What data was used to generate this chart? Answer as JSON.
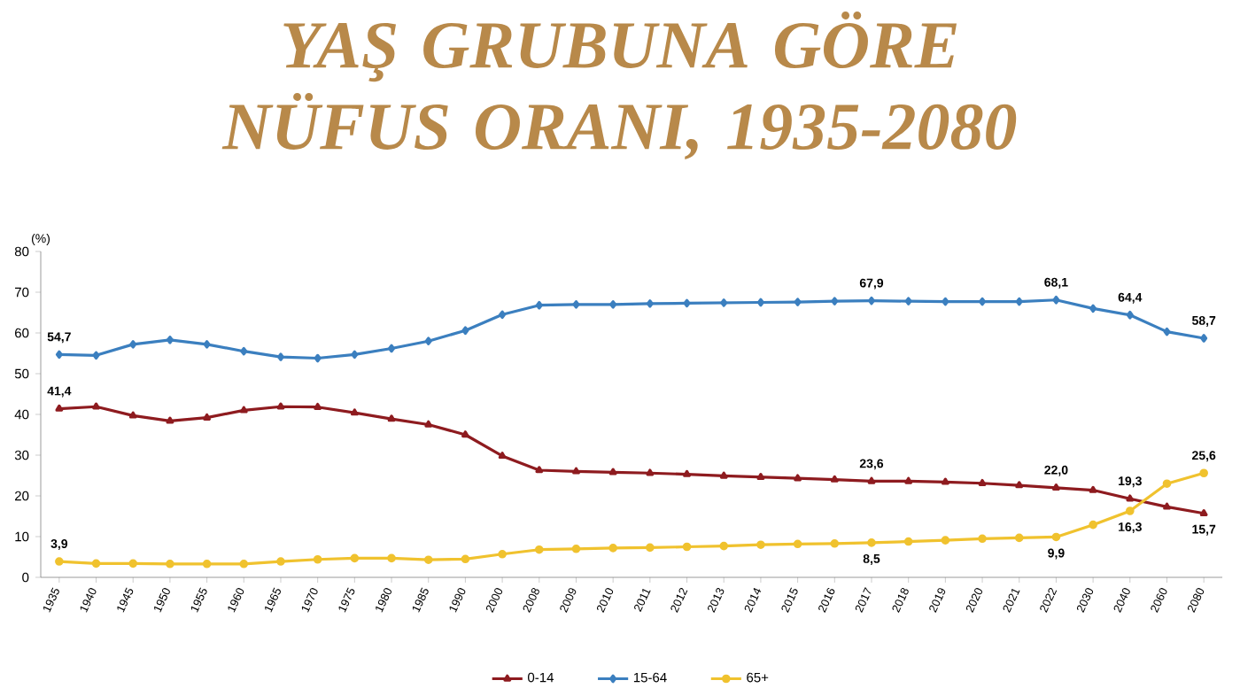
{
  "chart_data": {
    "type": "line",
    "title": "YAŞ GRUBUNA GÖRE NÜFUS ORANI, 1935-2080",
    "ylabel": "(%)",
    "categories": [
      "1935",
      "1940",
      "1945",
      "1950",
      "1955",
      "1960",
      "1965",
      "1970",
      "1975",
      "1980",
      "1985",
      "1990",
      "2000",
      "2008",
      "2009",
      "2010",
      "2011",
      "2012",
      "2013",
      "2014",
      "2015",
      "2016",
      "2017",
      "2018",
      "2019",
      "2020",
      "2021",
      "2022",
      "2030",
      "2040",
      "2060",
      "2080"
    ],
    "ylim": [
      0,
      80
    ],
    "yticks": [
      0,
      10,
      20,
      30,
      40,
      50,
      60,
      70,
      80
    ],
    "legend": "bottom",
    "series": [
      {
        "name": "0-14",
        "color": "#8e1b1f",
        "marker": "triangle",
        "values": [
          41.4,
          41.9,
          39.7,
          38.4,
          39.2,
          41.0,
          41.9,
          41.8,
          40.4,
          38.9,
          37.5,
          35.0,
          29.8,
          26.3,
          26.0,
          25.8,
          25.6,
          25.3,
          24.9,
          24.6,
          24.3,
          24.0,
          23.6,
          23.6,
          23.4,
          23.1,
          22.6,
          22.0,
          21.4,
          19.3,
          17.3,
          15.7
        ],
        "value_labels": [
          "41,4",
          null,
          null,
          null,
          null,
          null,
          null,
          null,
          null,
          null,
          null,
          null,
          null,
          null,
          null,
          null,
          null,
          null,
          null,
          null,
          null,
          null,
          "23,6",
          null,
          null,
          null,
          null,
          "22,0",
          null,
          "19,3",
          null,
          "15,7"
        ]
      },
      {
        "name": "15-64",
        "color": "#3b7fbf",
        "marker": "diamond",
        "values": [
          54.7,
          54.5,
          57.2,
          58.3,
          57.2,
          55.5,
          54.1,
          53.8,
          54.7,
          56.2,
          58.0,
          60.6,
          64.5,
          66.8,
          67.0,
          67.0,
          67.2,
          67.3,
          67.4,
          67.5,
          67.6,
          67.8,
          67.9,
          67.8,
          67.7,
          67.7,
          67.7,
          68.1,
          66.0,
          64.4,
          60.3,
          58.7
        ],
        "value_labels": [
          "54,7",
          null,
          null,
          null,
          null,
          null,
          null,
          null,
          null,
          null,
          null,
          null,
          null,
          null,
          null,
          null,
          null,
          null,
          null,
          null,
          null,
          null,
          "67,9",
          null,
          null,
          null,
          null,
          "68,1",
          null,
          "64,4",
          null,
          "58,7"
        ]
      },
      {
        "name": "65+",
        "color": "#f0c22e",
        "marker": "circle",
        "values": [
          3.9,
          3.4,
          3.4,
          3.3,
          3.3,
          3.3,
          3.9,
          4.4,
          4.7,
          4.7,
          4.3,
          4.5,
          5.7,
          6.8,
          7.0,
          7.2,
          7.3,
          7.5,
          7.7,
          8.0,
          8.2,
          8.3,
          8.5,
          8.8,
          9.1,
          9.5,
          9.7,
          9.9,
          12.9,
          16.3,
          23.0,
          25.6
        ],
        "value_labels": [
          "3,9",
          null,
          null,
          null,
          null,
          null,
          null,
          null,
          null,
          null,
          null,
          null,
          null,
          null,
          null,
          null,
          null,
          null,
          null,
          null,
          null,
          null,
          "8,5",
          null,
          null,
          null,
          null,
          "9,9",
          null,
          "16,3",
          null,
          "25,6"
        ]
      }
    ]
  }
}
